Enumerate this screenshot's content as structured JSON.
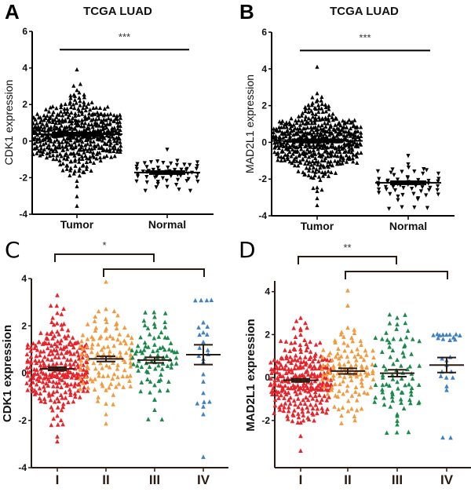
{
  "chart_data": [
    {
      "panel": "A",
      "type": "scatter",
      "title": "TCGA  LUAD",
      "ylabel": "CDK1 expression",
      "xlabel": "",
      "categories": [
        "Tumor",
        "Normal"
      ],
      "ylim": [
        -4,
        6
      ],
      "yticks": [
        6,
        4,
        2,
        0,
        -2,
        -4
      ],
      "series": [
        {
          "name": "Tumor",
          "marker": "triangle-up",
          "color": "#000000",
          "n": 500,
          "mean": 0.38,
          "sd": 1.15,
          "min": -3.5,
          "max": 3.9
        },
        {
          "name": "Normal",
          "marker": "triangle-down",
          "color": "#000000",
          "n": 59,
          "mean": -1.72,
          "sd": 0.45,
          "min": -2.7,
          "max": -0.45
        }
      ],
      "significance": [
        {
          "groups": [
            "Tumor",
            "Normal"
          ],
          "label": "***",
          "y": 5
        }
      ]
    },
    {
      "panel": "B",
      "type": "scatter",
      "title": "TCGA  LUAD",
      "ylabel": "MAD2L1 expression",
      "xlabel": "",
      "categories": [
        "Tumor",
        "Normal"
      ],
      "ylim": [
        -4,
        6
      ],
      "yticks": [
        6,
        4,
        2,
        0,
        -2,
        -4
      ],
      "series": [
        {
          "name": "Tumor",
          "marker": "triangle-up",
          "color": "#000000",
          "n": 500,
          "mean": 0.08,
          "sd": 1.1,
          "min": -3.4,
          "max": 4.15
        },
        {
          "name": "Normal",
          "marker": "triangle-down",
          "color": "#000000",
          "n": 59,
          "mean": -2.2,
          "sd": 0.55,
          "min": -3.6,
          "max": -0.75
        }
      ],
      "significance": [
        {
          "groups": [
            "Tumor",
            "Normal"
          ],
          "label": "***",
          "y": 5
        }
      ]
    },
    {
      "panel": "C",
      "type": "scatter",
      "title": "",
      "ylabel": "CDK1 expression",
      "xlabel": "",
      "categories": [
        "I",
        "II",
        "III",
        "IV"
      ],
      "ylim": [
        -4,
        4
      ],
      "yticks": [
        4,
        2,
        0,
        -2,
        -4
      ],
      "series": [
        {
          "name": "I",
          "color": "#e8232a",
          "n": 270,
          "mean": 0.18,
          "sem": 0.07,
          "min": -2.9,
          "max": 3.3
        },
        {
          "name": "II",
          "color": "#f39a3e",
          "n": 120,
          "mean": 0.6,
          "sem": 0.11,
          "min": -2.15,
          "max": 3.9
        },
        {
          "name": "III",
          "color": "#1a8a4a",
          "n": 84,
          "mean": 0.55,
          "sem": 0.12,
          "min": -1.95,
          "max": 2.6
        },
        {
          "name": "IV",
          "color": "#3f7fc6",
          "n": 26,
          "mean": 0.78,
          "sem": 0.42,
          "min": -3.55,
          "max": 3.1
        }
      ],
      "significance": [
        {
          "groups": [
            "I",
            "III"
          ],
          "label": "*"
        },
        {
          "groups": [
            "II",
            "IV"
          ],
          "label": ""
        }
      ]
    },
    {
      "panel": "D",
      "type": "scatter",
      "title": "",
      "ylabel": "MAD2L1 expression",
      "xlabel": "",
      "categories": [
        "I",
        "II",
        "III",
        "IV"
      ],
      "ylim": [
        -4.2,
        4.5
      ],
      "yticks": [
        4,
        2,
        0,
        -2
      ],
      "series": [
        {
          "name": "I",
          "color": "#e8232a",
          "n": 270,
          "mean": -0.13,
          "sem": 0.07,
          "min": -3.4,
          "max": 2.75
        },
        {
          "name": "II",
          "color": "#f39a3e",
          "n": 120,
          "mean": 0.3,
          "sem": 0.13,
          "min": -2.1,
          "max": 4.1
        },
        {
          "name": "III",
          "color": "#1a8a4a",
          "n": 84,
          "mean": 0.2,
          "sem": 0.16,
          "min": -2.55,
          "max": 2.95
        },
        {
          "name": "IV",
          "color": "#3f7fc6",
          "n": 26,
          "mean": 0.58,
          "sem": 0.35,
          "min": -2.8,
          "max": 2.0
        }
      ],
      "significance": [
        {
          "groups": [
            "I",
            "III"
          ],
          "label": "**"
        },
        {
          "groups": [
            "II",
            "IV"
          ],
          "label": ""
        }
      ]
    }
  ]
}
